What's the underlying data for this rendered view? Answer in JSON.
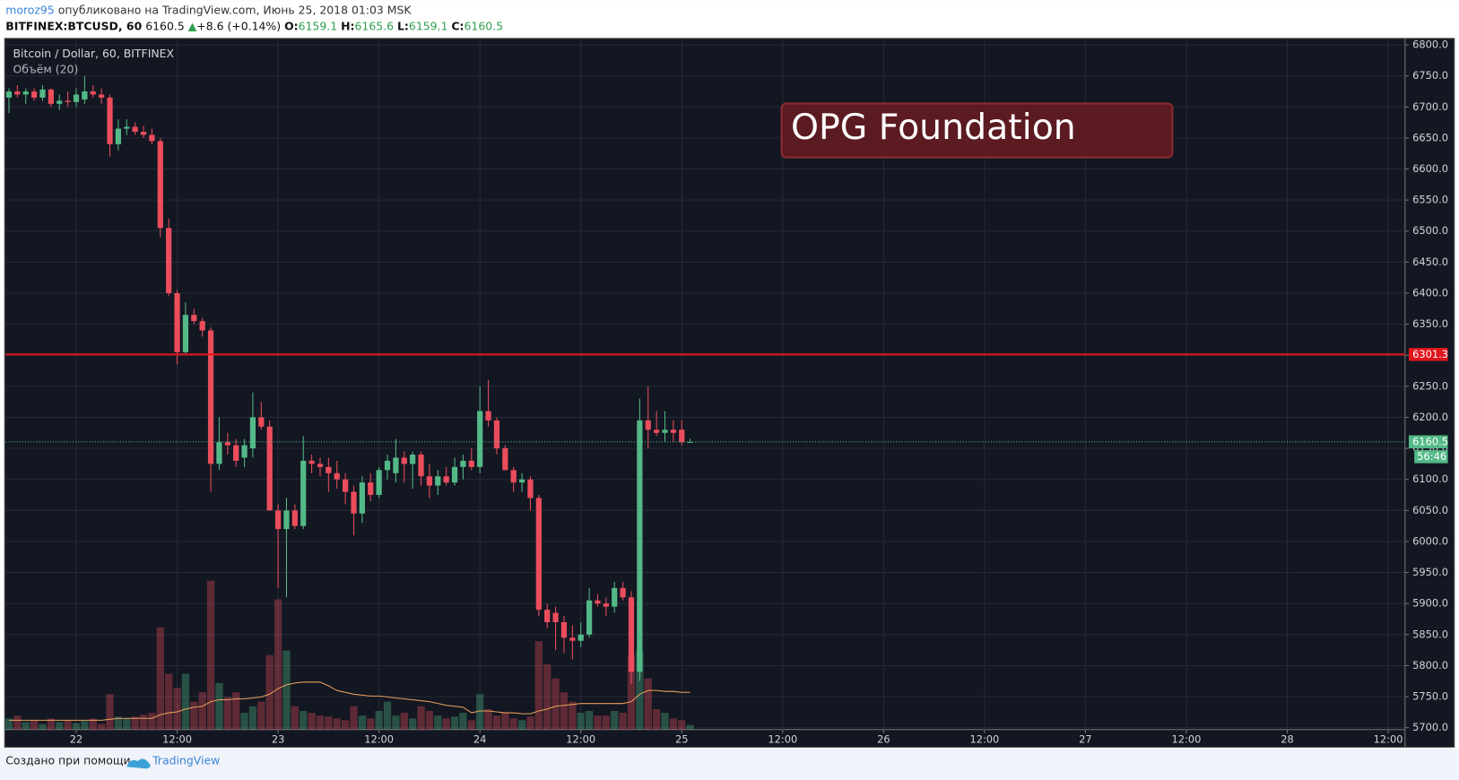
{
  "chart_data": {
    "type": "candlestick",
    "title": "Bitcoin / Dollar, 60, BITFINEX",
    "header": {
      "user": "moroz95",
      "published": "опубликовано на TradingView.com, Июнь 25, 2018 01:03 MSK",
      "symbol": "BITFINEX:BTCUSD, 60",
      "price": "6160.5",
      "change": "+8.6 (+0.14%)",
      "open_label": "O:",
      "open": "6159.1",
      "high_label": "H:",
      "high": "6165.6",
      "low_label": "L:",
      "low": "6159.1",
      "close_label": "C:",
      "close": "6160.5"
    },
    "annotation": "OPG Foundation",
    "footer": {
      "text": "Создано при помощи",
      "brand": "TradingView"
    },
    "up_color": "#53b987",
    "down_color": "#eb4d5c",
    "x": [
      -8,
      -7,
      -6,
      -5,
      -4,
      -3,
      -2,
      -1,
      0,
      1,
      2,
      3,
      4,
      5,
      6,
      7,
      8,
      9,
      10,
      11,
      12,
      13,
      14,
      15,
      16,
      17,
      18,
      19,
      20,
      21,
      22,
      23,
      24,
      25,
      26,
      27,
      28,
      29,
      30,
      31,
      32,
      33,
      34,
      35,
      36,
      37,
      38,
      39,
      40,
      41,
      42,
      43,
      44,
      45,
      46,
      47,
      48,
      49,
      50,
      51,
      52,
      53,
      54,
      55,
      56,
      57,
      58,
      59,
      60,
      61,
      62,
      63,
      64,
      65,
      66,
      67,
      68,
      69,
      70,
      71,
      72,
      73
    ],
    "open": [
      6715,
      6725,
      6720,
      6725,
      6715,
      6728,
      6705,
      6710,
      6708,
      6712,
      6725,
      6720,
      6715,
      6640,
      6665,
      6668,
      6660,
      6655,
      6645,
      6505,
      6400,
      6305,
      6365,
      6355,
      6340,
      6125,
      6160,
      6155,
      6135,
      6150,
      6200,
      6185,
      6050,
      6020,
      6050,
      6025,
      6130,
      6125,
      6120,
      6110,
      6100,
      6080,
      6045,
      6095,
      6075,
      6115,
      6110,
      6135,
      6125,
      6140,
      6105,
      6090,
      6105,
      6095,
      6120,
      6130,
      6120,
      6210,
      6195,
      6150,
      6115,
      6095,
      6100,
      6070,
      5890,
      5885,
      5870,
      5845,
      5840,
      5850,
      5905,
      5900,
      5895,
      5925,
      5910,
      5790,
      6195,
      6180,
      6175,
      6180,
      6180,
      6159.1
    ],
    "high": [
      6730,
      6735,
      6730,
      6730,
      6735,
      6730,
      6720,
      6725,
      6730,
      6750,
      6735,
      6730,
      6720,
      6680,
      6680,
      6675,
      6670,
      6665,
      6650,
      6520,
      6405,
      6385,
      6375,
      6360,
      6345,
      6200,
      6175,
      6165,
      6165,
      6240,
      6225,
      6195,
      6060,
      6070,
      6060,
      6170,
      6140,
      6135,
      6135,
      6130,
      6110,
      6090,
      6105,
      6110,
      6120,
      6140,
      6165,
      6145,
      6145,
      6145,
      6125,
      6115,
      6120,
      6135,
      6140,
      6150,
      6250,
      6260,
      6200,
      6155,
      6120,
      6110,
      6105,
      6075,
      5900,
      5895,
      5880,
      5865,
      5870,
      5925,
      5915,
      5910,
      5935,
      5935,
      5920,
      6230,
      6250,
      6210,
      6210,
      6195,
      6195,
      6165.6
    ],
    "low": [
      6690,
      6715,
      6705,
      6710,
      6710,
      6700,
      6695,
      6700,
      6700,
      6705,
      6715,
      6705,
      6620,
      6630,
      6655,
      6655,
      6650,
      6640,
      6490,
      6395,
      6285,
      6300,
      6350,
      6330,
      6080,
      6115,
      6140,
      6120,
      6120,
      6135,
      6180,
      6050,
      5925,
      5910,
      6020,
      6020,
      6110,
      6105,
      6080,
      6085,
      6060,
      6010,
      6030,
      6065,
      6070,
      6100,
      6095,
      6095,
      6085,
      6090,
      6070,
      6075,
      6090,
      6090,
      6100,
      6115,
      6110,
      6185,
      6140,
      6115,
      6080,
      6080,
      6050,
      5880,
      5860,
      5825,
      5820,
      5810,
      5830,
      5845,
      5895,
      5880,
      5885,
      5905,
      5770,
      5775,
      6150,
      6170,
      6160,
      6160,
      6155,
      6159.1
    ],
    "close": [
      6725,
      6720,
      6725,
      6715,
      6728,
      6705,
      6710,
      6708,
      6720,
      6725,
      6720,
      6715,
      6640,
      6665,
      6668,
      6660,
      6655,
      6645,
      6505,
      6400,
      6305,
      6365,
      6355,
      6340,
      6125,
      6160,
      6155,
      6130,
      6155,
      6200,
      6185,
      6050,
      6020,
      6050,
      6025,
      6130,
      6125,
      6120,
      6110,
      6100,
      6080,
      6045,
      6095,
      6075,
      6115,
      6130,
      6135,
      6125,
      6140,
      6105,
      6090,
      6105,
      6095,
      6120,
      6130,
      6120,
      6210,
      6195,
      6150,
      6115,
      6095,
      6100,
      6070,
      5890,
      5870,
      5870,
      5845,
      5840,
      5850,
      5905,
      5900,
      5895,
      5925,
      5910,
      5790,
      6195,
      6180,
      6175,
      6180,
      6175,
      6160,
      6160.5
    ],
    "volume": {
      "name": "Объём (20)",
      "vlim": [
        0,
        200
      ],
      "ma_color": "#e8a15a",
      "values": [
        12,
        15,
        8,
        10,
        6,
        12,
        8,
        10,
        7,
        9,
        12,
        6,
        38,
        14,
        12,
        14,
        16,
        18,
        110,
        60,
        45,
        60,
        30,
        40,
        160,
        50,
        35,
        40,
        18,
        25,
        30,
        80,
        140,
        85,
        25,
        20,
        18,
        15,
        14,
        12,
        10,
        25,
        15,
        12,
        20,
        30,
        15,
        18,
        12,
        25,
        20,
        15,
        12,
        14,
        18,
        10,
        38,
        22,
        15,
        18,
        12,
        10,
        14,
        95,
        70,
        55,
        40,
        30,
        18,
        20,
        15,
        15,
        20,
        18,
        80,
        85,
        55,
        22,
        18,
        12,
        10,
        5
      ],
      "ma": [
        10,
        10,
        10,
        10,
        10,
        10,
        10,
        10,
        10,
        10,
        10,
        10,
        11,
        12,
        12,
        12,
        12,
        12,
        16,
        18,
        19,
        22,
        24,
        25,
        30,
        32,
        32,
        33,
        33,
        34,
        35,
        38,
        44,
        48,
        50,
        51,
        51,
        51,
        47,
        42,
        40,
        38,
        37,
        36,
        36,
        35,
        34,
        33,
        32,
        31,
        30,
        28,
        26,
        25,
        24,
        18,
        20,
        20,
        19,
        18,
        18,
        17,
        17,
        20,
        22,
        25,
        26,
        27,
        28,
        28,
        28,
        28,
        28,
        28,
        30,
        38,
        42,
        42,
        41,
        41,
        40,
        40
      ]
    },
    "hline": {
      "value": 6301.3,
      "color": "#e0161b"
    },
    "last_price": 6160.5,
    "countdown": "56:46",
    "xlim": [
      -8.4,
      158
    ],
    "xticks": [
      {
        "value": 0,
        "label": "22"
      },
      {
        "value": 12,
        "label": "12:00"
      },
      {
        "value": 24,
        "label": "23"
      },
      {
        "value": 36,
        "label": "12:00"
      },
      {
        "value": 48,
        "label": "24"
      },
      {
        "value": 60,
        "label": "12:00"
      },
      {
        "value": 72,
        "label": "25"
      },
      {
        "value": 84,
        "label": "12:00"
      },
      {
        "value": 96,
        "label": "26"
      },
      {
        "value": 108,
        "label": "12:00"
      },
      {
        "value": 120,
        "label": "27"
      },
      {
        "value": 132,
        "label": "12:00"
      },
      {
        "value": 144,
        "label": "28"
      },
      {
        "value": 156,
        "label": "12:00"
      }
    ],
    "ylim": [
      5697,
      6809
    ],
    "yticks": [
      {
        "value": 5700,
        "label": "5700.0"
      },
      {
        "value": 5750,
        "label": "5750.0"
      },
      {
        "value": 5800,
        "label": "5800.0"
      },
      {
        "value": 5850,
        "label": "5850.0"
      },
      {
        "value": 5900,
        "label": "5900.0"
      },
      {
        "value": 5950,
        "label": "5950.0"
      },
      {
        "value": 6000,
        "label": "6000.0"
      },
      {
        "value": 6050,
        "label": "6050.0"
      },
      {
        "value": 6100,
        "label": "6100.0"
      },
      {
        "value": 6150,
        "label": "6150.0"
      },
      {
        "value": 6200,
        "label": "6200.0"
      },
      {
        "value": 6250,
        "label": "6250.0"
      },
      {
        "value": 6300,
        "label": "6300.0"
      },
      {
        "value": 6350,
        "label": "6350.0"
      },
      {
        "value": 6400,
        "label": "6400.0"
      },
      {
        "value": 6450,
        "label": "6450.0"
      },
      {
        "value": 6500,
        "label": "6500.0"
      },
      {
        "value": 6550,
        "label": "6550.0"
      },
      {
        "value": 6600,
        "label": "6600.0"
      },
      {
        "value": 6650,
        "label": "6650.0"
      },
      {
        "value": 6700,
        "label": "6700.0"
      },
      {
        "value": 6750,
        "label": "6750.0"
      },
      {
        "value": 6800,
        "label": "6800.0"
      }
    ],
    "grid": true
  }
}
